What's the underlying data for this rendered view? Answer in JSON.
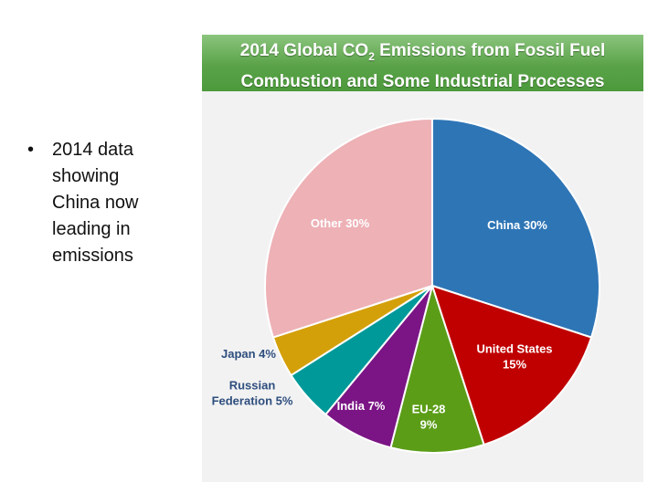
{
  "bullet": {
    "symbol": "•",
    "text": "2014 data showing China now leading in emissions"
  },
  "panel": {
    "title_line1_prefix": "2014 Global CO",
    "title_line1_subscript": "2",
    "title_line1_suffix": " Emissions from Fossil Fuel",
    "title_line2": "Combustion and Some Industrial Processes",
    "header_color": "#5aa248",
    "background_color": "#f2f2f2"
  },
  "chart_data": {
    "type": "pie",
    "title": "2014 Global CO2 Emissions from Fossil Fuel Combustion and Some Industrial Processes",
    "start_angle_deg": 0,
    "direction": "clockwise",
    "slices": [
      {
        "name": "China",
        "value": 30,
        "label_lines": [
          "China 30%"
        ],
        "color": "#2e75b6",
        "label_color": "#ffffff"
      },
      {
        "name": "United States",
        "value": 15,
        "label_lines": [
          "United States",
          "15%"
        ],
        "color": "#c00000",
        "label_color": "#ffffff"
      },
      {
        "name": "EU-28",
        "value": 9,
        "label_lines": [
          "EU-28",
          "9%"
        ],
        "color": "#5b9d17",
        "label_color": "#ffffff"
      },
      {
        "name": "India",
        "value": 7,
        "label_lines": [
          "India 7%"
        ],
        "color": "#7b1585",
        "label_color": "#ffffff"
      },
      {
        "name": "Russian Federation",
        "value": 5,
        "label_lines": [
          "Russian",
          "Federation 5%"
        ],
        "color": "#009999",
        "label_color": "#2e4e7e"
      },
      {
        "name": "Japan",
        "value": 4,
        "label_lines": [
          "Japan 4%"
        ],
        "color": "#d4a00a",
        "label_color": "#2e4e7e"
      },
      {
        "name": "Other",
        "value": 30,
        "label_lines": [
          "Other 30%"
        ],
        "color": "#edb1b6",
        "label_color": "#ffffff"
      }
    ]
  }
}
